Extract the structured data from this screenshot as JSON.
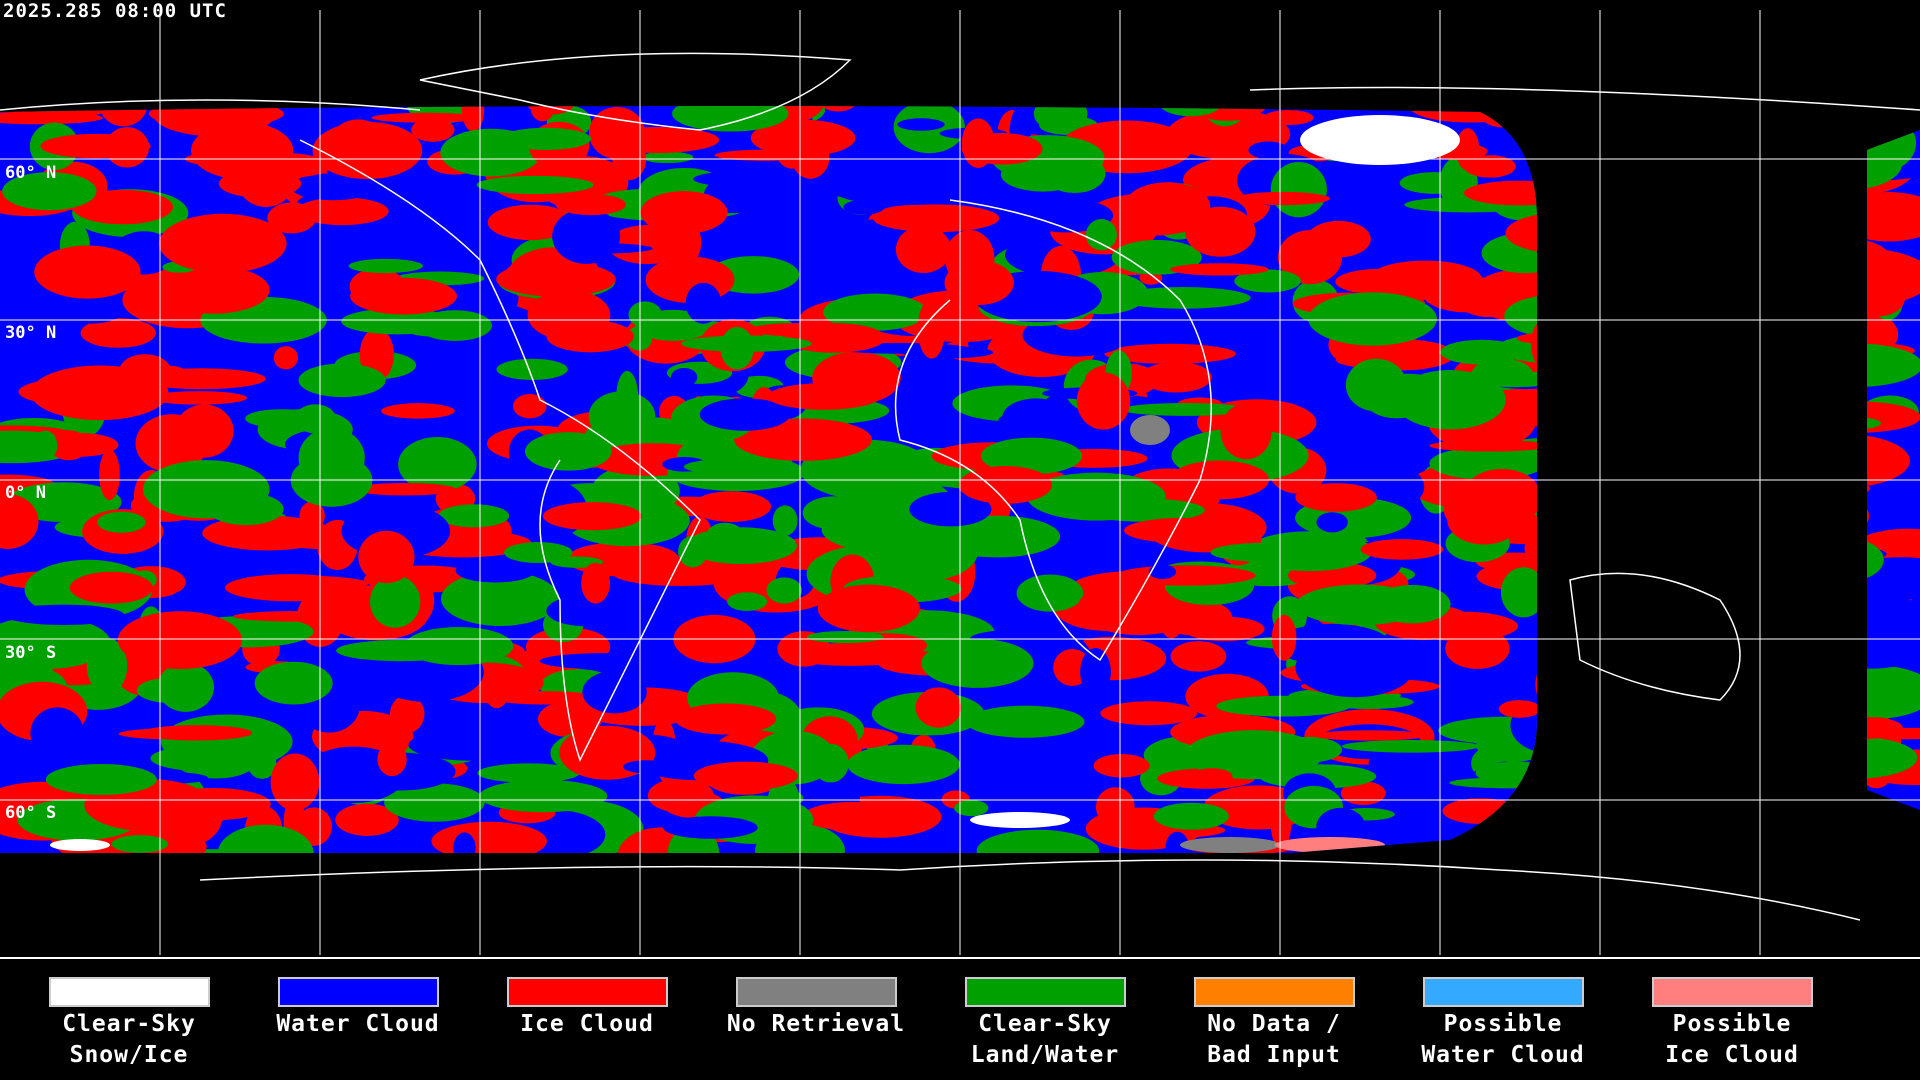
{
  "timestamp": "2025.285 08:00 UTC",
  "latitude_labels": [
    "60° N",
    "30° N",
    "0° N",
    "30° S",
    "60° S"
  ],
  "legend": [
    {
      "line1": "Clear-Sky",
      "line2": "Snow/Ice",
      "color": "#ffffff"
    },
    {
      "line1": "Water Cloud",
      "line2": "",
      "color": "#0000ff"
    },
    {
      "line1": "Ice Cloud",
      "line2": "",
      "color": "#ff0000"
    },
    {
      "line1": "No Retrieval",
      "line2": "",
      "color": "#808080"
    },
    {
      "line1": "Clear-Sky",
      "line2": "Land/Water",
      "color": "#00a000"
    },
    {
      "line1": "No Data /",
      "line2": "Bad Input",
      "color": "#ff8000"
    },
    {
      "line1": "Possible",
      "line2": "Water Cloud",
      "color": "#33aaff"
    },
    {
      "line1": "Possible",
      "line2": "Ice Cloud",
      "color": "#ff7f7f"
    }
  ]
}
